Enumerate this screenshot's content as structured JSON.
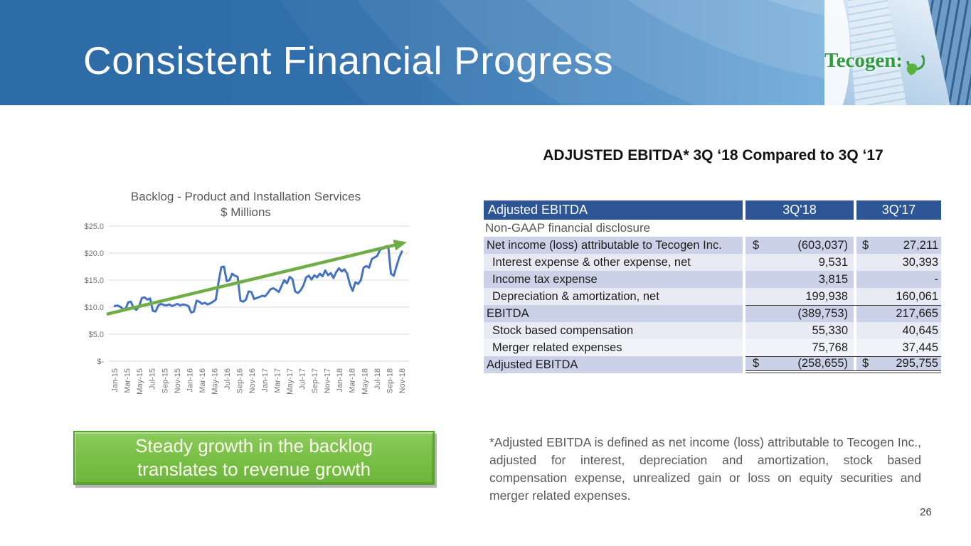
{
  "slide": {
    "title": "Consistent Financial Progress",
    "page_number": "26",
    "logo_text": "Tecogen:",
    "colors": {
      "header_blue": "#2d6ba6",
      "header_blue_light": "#5b9fd6",
      "accent_green": "#76be43",
      "table_header_blue": "#2e5697",
      "row_shade_dark": "#cbd1e6",
      "row_shade_light": "#e9ebf4",
      "line_blue": "#4472c4",
      "trend_green": "#70ad47"
    }
  },
  "chart_data": {
    "type": "line",
    "title": "Backlog - Product and Installation Services",
    "subtitle": "$ Millions",
    "ylabel": "$ Millions",
    "y_min": 0,
    "y_max": 25,
    "y_ticks": [
      "$25.0",
      "$20.0",
      "$15.0",
      "$10.0",
      "$5.0",
      "$-"
    ],
    "grid": true,
    "legend": "none",
    "x_tick_labels": [
      "Jan-15",
      "Mar-15",
      "May-15",
      "Jul-15",
      "Sep-15",
      "Nov-15",
      "Jan-16",
      "Mar-16",
      "May-16",
      "Jul-16",
      "Sep-16",
      "Nov-16",
      "Jan-17",
      "Mar-17",
      "May-17",
      "Jul-17",
      "Sep-17",
      "Nov-17",
      "Jan-18",
      "Mar-18",
      "May-18",
      "Jul-18",
      "Sep-18",
      "Nov-18"
    ],
    "series": [
      {
        "name": "Backlog ($M)",
        "values": [
          10.2,
          10.3,
          10.1,
          9.7,
          9.6,
          10.9,
          11.0,
          9.8,
          9.5,
          10.2,
          11.7,
          11.8,
          11.4,
          11.6,
          9.3,
          9.2,
          10.3,
          10.6,
          10.4,
          10.3,
          10.5,
          10.2,
          10.4,
          10.6,
          10.3,
          10.5,
          10.4,
          10.2,
          9.0,
          9.2,
          11.2,
          11.0,
          10.6,
          10.8,
          10.5,
          10.7,
          11.0,
          11.4,
          14.6,
          17.4,
          17.5,
          14.8,
          15.0,
          16.2,
          15.8,
          15.6,
          11.2,
          11.0,
          11.4,
          12.9,
          12.8,
          11.5,
          11.7,
          11.9,
          12.1,
          12.0,
          12.6,
          13.3,
          13.5,
          13.2,
          12.8,
          13.9,
          15.0,
          14.4,
          15.6,
          15.2,
          12.9,
          12.6,
          13.1,
          14.0,
          15.5,
          15.8,
          15.1,
          15.9,
          15.5,
          16.2,
          15.7,
          16.8,
          15.9,
          16.3,
          15.4,
          16.5,
          17.2,
          16.6,
          17.0,
          16.2,
          14.2,
          13.0,
          14.6,
          14.3,
          15.0,
          17.3,
          17.6,
          17.3,
          18.9,
          19.2,
          19.5,
          20.6,
          20.8,
          21.2,
          21.3,
          16.2,
          15.8,
          17.5,
          19.2,
          20.3
        ]
      }
    ],
    "trend": {
      "start_value": 8.7,
      "end_value": 21.8,
      "style": "arrow",
      "color": "#70ad47"
    }
  },
  "callout": {
    "line1": "Steady growth in the backlog",
    "line2": "translates to revenue growth"
  },
  "table_section": {
    "heading": "ADJUSTED EBITDA* 3Q ‘18 Compared to 3Q ‘17",
    "table": {
      "header": {
        "label": "Adjusted EBITDA",
        "col1": "3Q'18",
        "col2": "3Q'17"
      },
      "subheader": "Non-GAAP financial disclosure",
      "rows": [
        {
          "label": "Net income (loss) attributable to Tecogen Inc.",
          "d18": "$",
          "v18": "(603,037)",
          "d17": "$",
          "v17": "27,211",
          "shade": "dark",
          "indent": false,
          "topline": false,
          "double": false
        },
        {
          "label": "Interest expense & other expense, net",
          "d18": "",
          "v18": "9,531",
          "d17": "",
          "v17": "30,393",
          "shade": "light",
          "indent": true,
          "topline": false,
          "double": false
        },
        {
          "label": "Income tax expense",
          "d18": "",
          "v18": "3,815",
          "d17": "",
          "v17": "-",
          "shade": "dark",
          "indent": true,
          "topline": false,
          "double": false
        },
        {
          "label": "Depreciation & amortization, net",
          "d18": "",
          "v18": "199,938",
          "d17": "",
          "v17": "160,061",
          "shade": "light",
          "indent": true,
          "topline": false,
          "double": false
        },
        {
          "label": "EBITDA",
          "d18": "",
          "v18": "(389,753)",
          "d17": "",
          "v17": "217,665",
          "shade": "dark",
          "indent": false,
          "topline": true,
          "double": false
        },
        {
          "label": "Stock based compensation",
          "d18": "",
          "v18": "55,330",
          "d17": "",
          "v17": "40,645",
          "shade": "light",
          "indent": true,
          "topline": false,
          "double": false
        },
        {
          "label": "Merger related expenses",
          "d18": "",
          "v18": "75,768",
          "d17": "",
          "v17": "37,445",
          "shade": "xlight",
          "indent": true,
          "topline": false,
          "double": false
        },
        {
          "label": "Adjusted EBITDA",
          "d18": "$",
          "v18": "(258,655)",
          "d17": "$",
          "v17": "295,755",
          "shade": "dark",
          "indent": false,
          "topline": true,
          "double": true
        }
      ]
    },
    "footnote": "*Adjusted EBITDA is defined as net income (loss) attributable to Tecogen Inc., adjusted for interest, depreciation and amortization, stock based compensation expense, unrealized gain or loss on equity securities and merger related expenses."
  }
}
